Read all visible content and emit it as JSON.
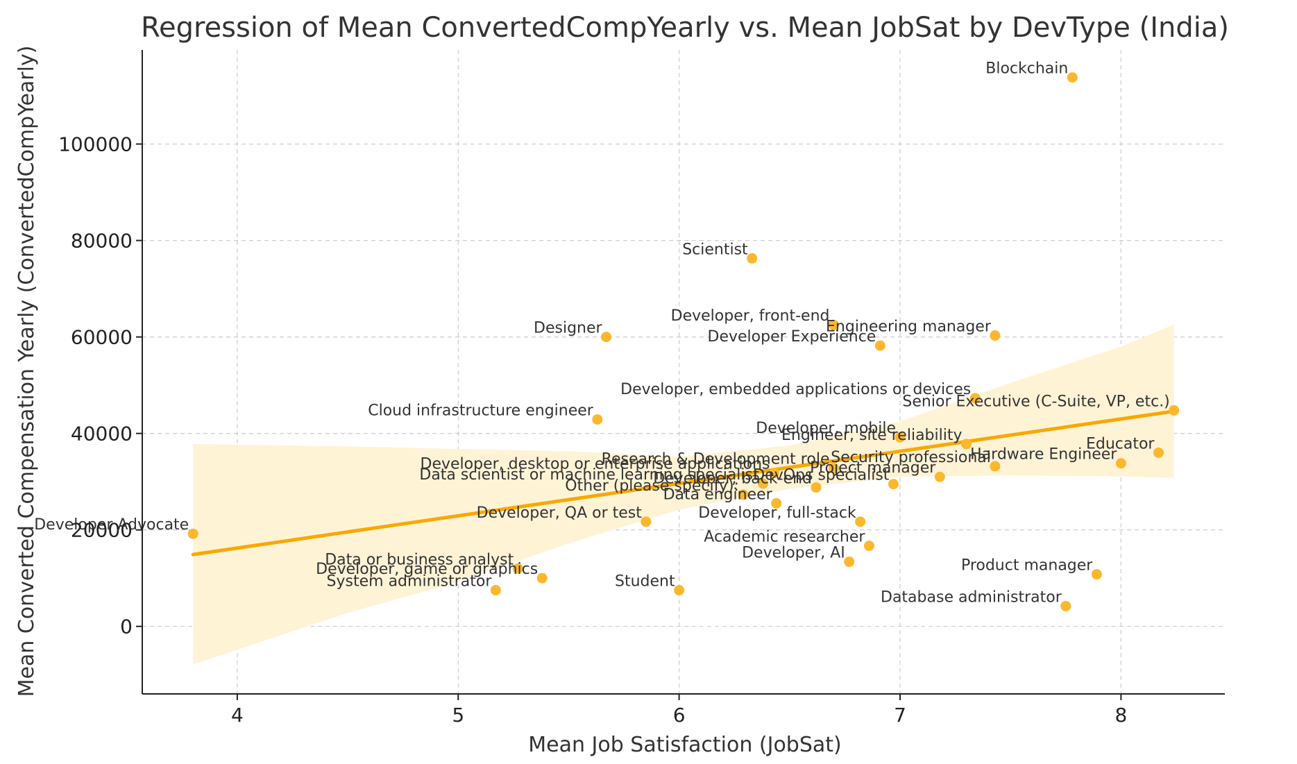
{
  "chart_data": {
    "type": "scatter",
    "title": "Regression of Mean ConvertedCompYearly vs. Mean JobSat by DevType (India)",
    "xlabel": "Mean Job Satisfaction (JobSat)",
    "ylabel": "Mean Converted Compensation Yearly (ConvertedCompYearly)",
    "xlim": [
      3.57,
      8.47
    ],
    "ylim": [
      -14000,
      119500
    ],
    "xticks": [
      4,
      5,
      6,
      7,
      8
    ],
    "yticks": [
      0,
      20000,
      40000,
      60000,
      80000,
      100000
    ],
    "grid": true,
    "colors": {
      "point": "#FBB82E",
      "line": "#F9A800",
      "band": "#FFF3D6"
    },
    "points": [
      {
        "label": "Blockchain",
        "x": 7.78,
        "y": 113800
      },
      {
        "label": "Scientist",
        "x": 6.33,
        "y": 76300
      },
      {
        "label": "Developer, front-end",
        "x": 6.7,
        "y": 62500
      },
      {
        "label": "Designer",
        "x": 5.67,
        "y": 60000
      },
      {
        "label": "Engineering manager",
        "x": 7.43,
        "y": 60300
      },
      {
        "label": "Developer Experience",
        "x": 6.91,
        "y": 58200
      },
      {
        "label": "Developer, embedded applications or devices",
        "x": 7.34,
        "y": 47300
      },
      {
        "label": "Senior Executive (C-Suite, VP, etc.)",
        "x": 8.24,
        "y": 44800
      },
      {
        "label": "Cloud infrastructure engineer",
        "x": 5.63,
        "y": 42900
      },
      {
        "label": "Developer, mobile",
        "x": 7.0,
        "y": 39200
      },
      {
        "label": "Engineer, site reliability",
        "x": 7.3,
        "y": 37800
      },
      {
        "label": "Educator",
        "x": 8.17,
        "y": 36000
      },
      {
        "label": "Hardware Engineer",
        "x": 8.0,
        "y": 33800
      },
      {
        "label": "Security professional",
        "x": 7.43,
        "y": 33200
      },
      {
        "label": "Research & Development role",
        "x": 6.7,
        "y": 32800
      },
      {
        "label": "Developer, desktop or enterprise applications",
        "x": 6.43,
        "y": 31800
      },
      {
        "label": "Project manager",
        "x": 7.18,
        "y": 31000
      },
      {
        "label": "DevOps specialist",
        "x": 6.97,
        "y": 29500
      },
      {
        "label": "Developer, back-end",
        "x": 6.62,
        "y": 28800
      },
      {
        "label": "Data scientist or machine learning specialist",
        "x": 6.38,
        "y": 29600
      },
      {
        "label": "Other (please specify):",
        "x": 6.29,
        "y": 27300
      },
      {
        "label": "Data engineer",
        "x": 6.44,
        "y": 25500
      },
      {
        "label": "Developer, QA or test",
        "x": 5.85,
        "y": 21700
      },
      {
        "label": "Developer, full-stack",
        "x": 6.82,
        "y": 21700
      },
      {
        "label": "Developer Advocate",
        "x": 3.8,
        "y": 19200
      },
      {
        "label": "Academic researcher",
        "x": 6.86,
        "y": 16700
      },
      {
        "label": "Developer, AI",
        "x": 6.77,
        "y": 13400
      },
      {
        "label": "Data or business analyst",
        "x": 5.27,
        "y": 12000
      },
      {
        "label": "Product manager",
        "x": 7.89,
        "y": 10800
      },
      {
        "label": "Developer, game or graphics",
        "x": 5.38,
        "y": 10000
      },
      {
        "label": "System administrator",
        "x": 5.17,
        "y": 7500
      },
      {
        "label": "Student",
        "x": 6.0,
        "y": 7500
      },
      {
        "label": "Database administrator",
        "x": 7.75,
        "y": 4200
      }
    ],
    "regression": {
      "x": [
        3.8,
        8.24
      ],
      "y": [
        14900,
        44600
      ]
    },
    "confidence_band": {
      "x": [
        3.8,
        4.5,
        5.0,
        5.5,
        6.0,
        6.5,
        7.0,
        7.5,
        8.0,
        8.24
      ],
      "upper": [
        37800,
        37300,
        36800,
        36300,
        35200,
        37500,
        42500,
        50500,
        58000,
        62600
      ],
      "lower": [
        -7900,
        2800,
        9200,
        17200,
        24200,
        28500,
        31000,
        31300,
        31100,
        30800
      ]
    }
  }
}
